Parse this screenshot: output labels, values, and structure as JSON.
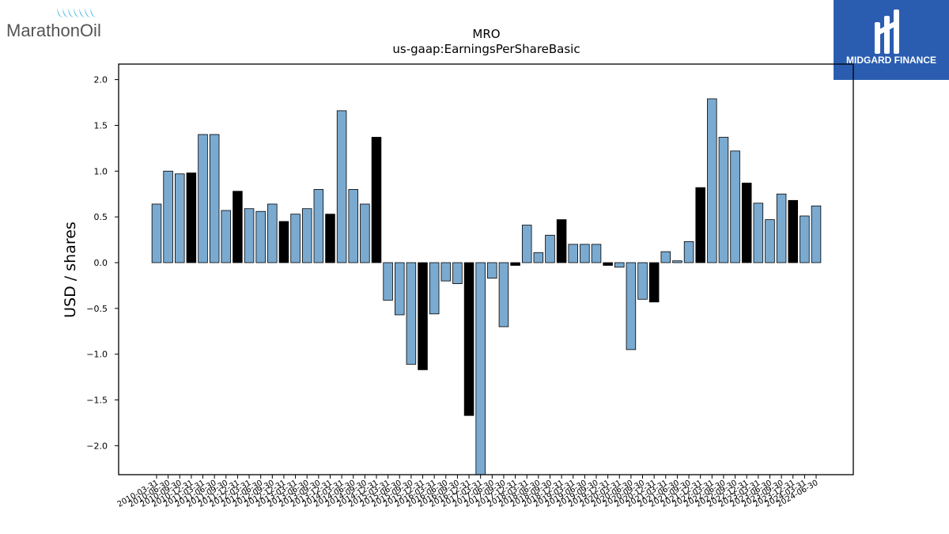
{
  "logos": {
    "left_text": "MarathonOil",
    "right_text": "MIDGARD FINANCE",
    "right_bg": "#2a5db0"
  },
  "chart_data": {
    "type": "bar",
    "title": "MRO",
    "subtitle": "us-gaap:EarningsPerShareBasic",
    "ylabel": "USD / shares",
    "xlabel": "",
    "ylim": [
      -2.3,
      2.15
    ],
    "yticks": [
      "2.0",
      "1.5",
      "1.0",
      "0.5",
      "0.0",
      "−0.5",
      "−1.0",
      "−1.5",
      "−2.0"
    ],
    "ytick_values": [
      2.0,
      1.5,
      1.0,
      0.5,
      0.0,
      -0.5,
      -1.0,
      -1.5,
      -2.0
    ],
    "colors": {
      "quarterly": "#7aaad0",
      "annual": "#000000"
    },
    "categories": [
      "2010-03-31",
      "2010-06-30",
      "2010-09-30",
      "2010-12-31",
      "2011-03-31",
      "2011-06-30",
      "2011-09-30",
      "2011-12-31",
      "2012-03-31",
      "2012-06-30",
      "2012-09-30",
      "2012-12-31",
      "2013-03-31",
      "2013-06-30",
      "2013-09-30",
      "2013-12-31",
      "2014-03-31",
      "2014-06-30",
      "2014-09-30",
      "2014-12-31",
      "2015-03-31",
      "2015-06-30",
      "2015-09-30",
      "2015-12-31",
      "2016-03-31",
      "2016-06-30",
      "2016-09-30",
      "2016-12-31",
      "2017-03-31",
      "2017-06-30",
      "2017-09-30",
      "2017-12-31",
      "2018-03-31",
      "2018-06-30",
      "2018-09-30",
      "2018-12-31",
      "2019-03-31",
      "2019-06-30",
      "2019-09-30",
      "2019-12-31",
      "2020-03-31",
      "2020-06-30",
      "2020-09-30",
      "2020-12-31",
      "2021-03-31",
      "2021-06-30",
      "2021-09-30",
      "2021-12-31",
      "2022-03-31",
      "2022-06-30",
      "2022-09-30",
      "2022-12-31",
      "2023-03-31",
      "2023-06-30",
      "2023-09-30",
      "2023-12-31",
      "2024-03-31",
      "2024-06-30"
    ],
    "values": [
      0.64,
      1.0,
      0.97,
      0.98,
      1.4,
      1.4,
      0.57,
      0.78,
      0.59,
      0.56,
      0.64,
      0.45,
      0.53,
      0.59,
      0.8,
      0.53,
      1.66,
      0.8,
      0.64,
      1.37,
      -0.41,
      -0.57,
      -1.11,
      -1.17,
      -0.56,
      -0.2,
      -0.23,
      -1.67,
      -2.4,
      -0.17,
      -0.7,
      -0.03,
      0.41,
      0.11,
      0.3,
      0.47,
      0.2,
      0.2,
      0.2,
      -0.03,
      -0.05,
      -0.95,
      -0.4,
      -0.43,
      0.12,
      0.02,
      0.23,
      0.82,
      1.79,
      1.37,
      1.22,
      0.87,
      0.65,
      0.47,
      0.75,
      0.68,
      0.51,
      0.62
    ],
    "annual": [
      false,
      false,
      false,
      true,
      false,
      false,
      false,
      true,
      false,
      false,
      false,
      true,
      false,
      false,
      false,
      true,
      false,
      false,
      false,
      true,
      false,
      false,
      false,
      true,
      false,
      false,
      false,
      true,
      false,
      false,
      false,
      true,
      false,
      false,
      false,
      true,
      false,
      false,
      false,
      true,
      false,
      false,
      false,
      true,
      false,
      false,
      false,
      true,
      false,
      false,
      false,
      true,
      false,
      false,
      false,
      true,
      false,
      false
    ],
    "grid": false,
    "legend": "none"
  }
}
